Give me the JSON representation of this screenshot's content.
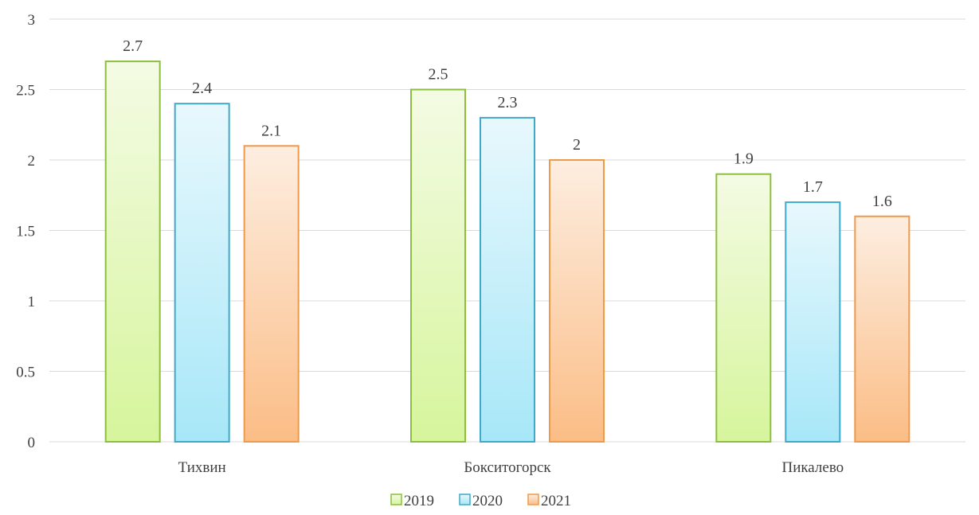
{
  "chart_data": {
    "type": "bar",
    "title": "",
    "xlabel": "",
    "ylabel": "",
    "ylim": [
      0,
      3
    ],
    "ytick_step": 0.5,
    "grid": true,
    "legend_position": "bottom",
    "categories": [
      "Тихвин",
      "Бокситогорск",
      "Пикалево"
    ],
    "series": [
      {
        "name": "2019",
        "values": [
          2.7,
          2.5,
          1.9
        ],
        "color": "#8cbf3f",
        "fill_top": "#f4fbe4",
        "fill_bottom": "#d6f59c"
      },
      {
        "name": "2020",
        "values": [
          2.4,
          2.3,
          1.7
        ],
        "color": "#3fa9c9",
        "fill_top": "#e8f8fd",
        "fill_bottom": "#a7e7f8"
      },
      {
        "name": "2021",
        "values": [
          2.1,
          2.0,
          1.6
        ],
        "color": "#ee9a4d",
        "fill_top": "#fdeee1",
        "fill_bottom": "#fbbd86"
      }
    ]
  }
}
